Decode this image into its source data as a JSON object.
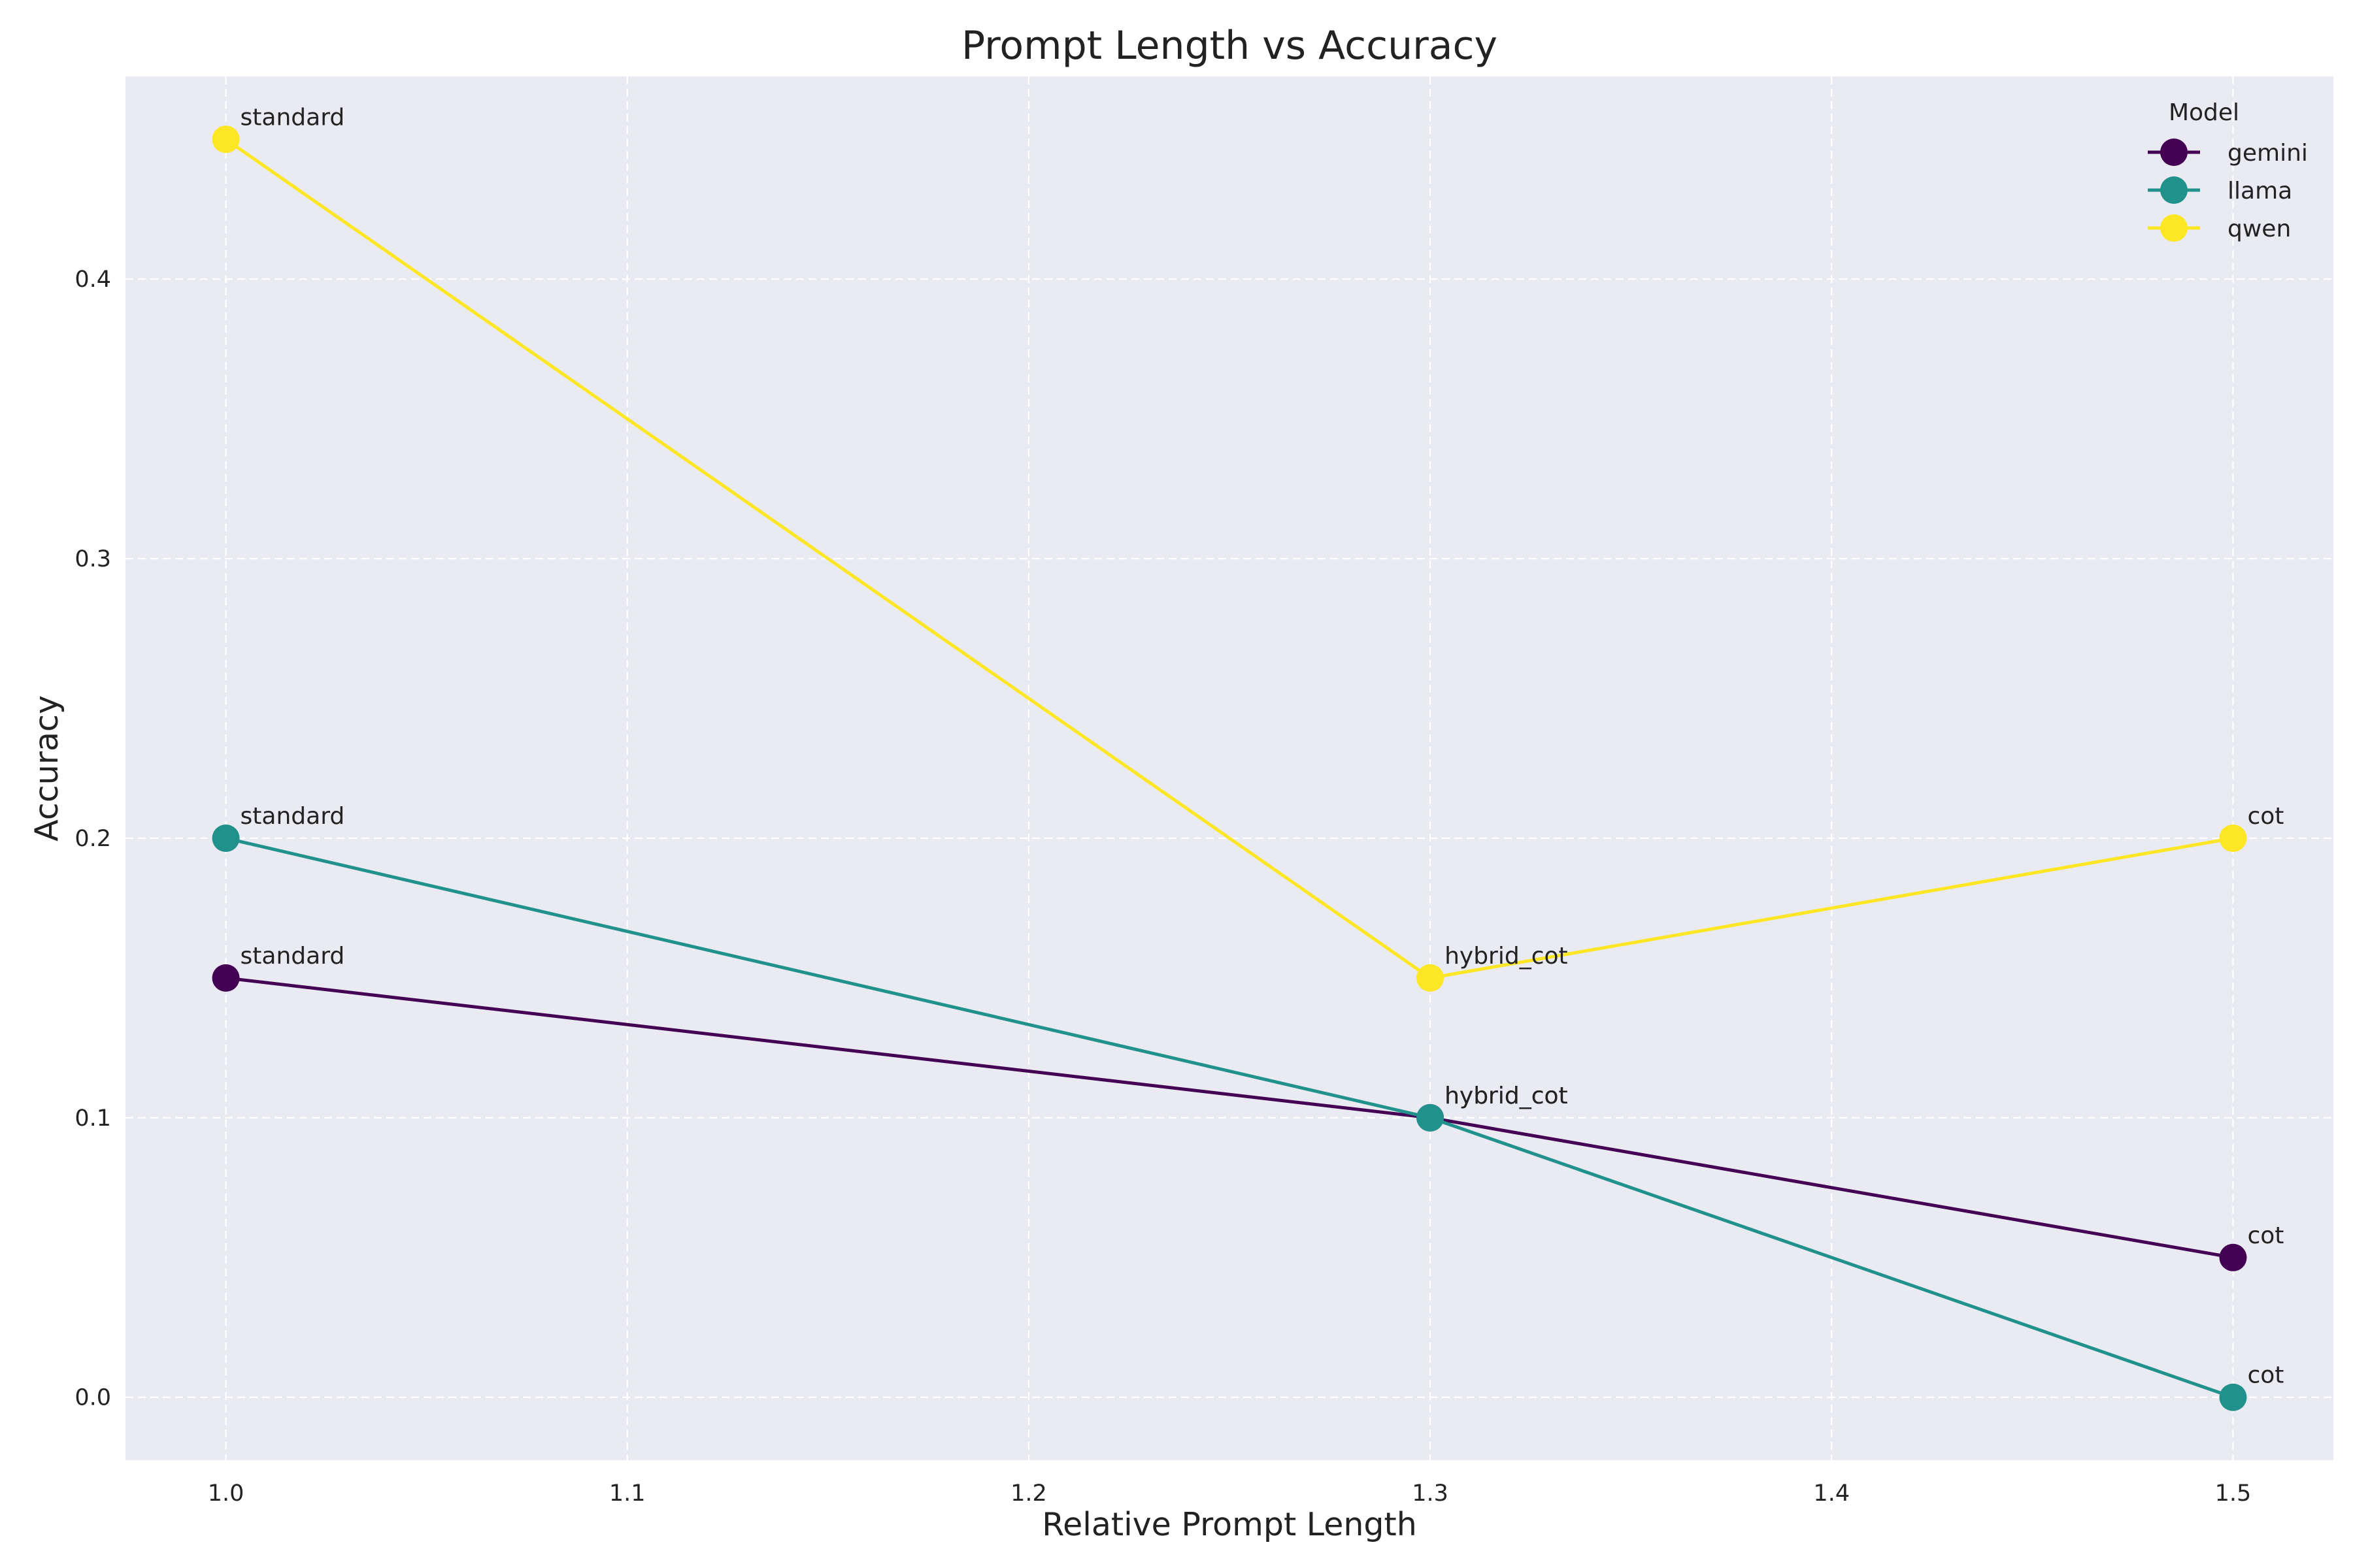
{
  "chart_data": {
    "type": "line",
    "title": "Prompt Length vs Accuracy",
    "xlabel": "Relative Prompt Length",
    "ylabel": "Accuracy",
    "xlim": [
      0.975,
      1.525
    ],
    "ylim": [
      -0.0225,
      0.4725
    ],
    "xticks": [
      1.0,
      1.1,
      1.2,
      1.3,
      1.4,
      1.5
    ],
    "xtick_labels": [
      "1.0",
      "1.1",
      "1.2",
      "1.3",
      "1.4",
      "1.5"
    ],
    "yticks": [
      0.0,
      0.1,
      0.2,
      0.3,
      0.4
    ],
    "ytick_labels": [
      "0.0",
      "0.1",
      "0.2",
      "0.3",
      "0.4"
    ],
    "grid": true,
    "background": "#e9eaf2",
    "legend": {
      "title": "Model",
      "position": "top-right"
    },
    "series": [
      {
        "name": "gemini",
        "color": "#440154",
        "x": [
          1.0,
          1.3,
          1.5
        ],
        "y": [
          0.15,
          0.1,
          0.05
        ],
        "labels": [
          "standard",
          "hybrid_cot",
          "cot"
        ]
      },
      {
        "name": "llama",
        "color": "#21918c",
        "x": [
          1.0,
          1.3,
          1.5
        ],
        "y": [
          0.2,
          0.1,
          0.0
        ],
        "labels": [
          "standard",
          "hybrid_cot",
          "cot"
        ]
      },
      {
        "name": "qwen",
        "color": "#fde725",
        "x": [
          1.0,
          1.3,
          1.5
        ],
        "y": [
          0.45,
          0.15,
          0.2
        ],
        "labels": [
          "standard",
          "hybrid_cot",
          "cot"
        ]
      }
    ]
  }
}
